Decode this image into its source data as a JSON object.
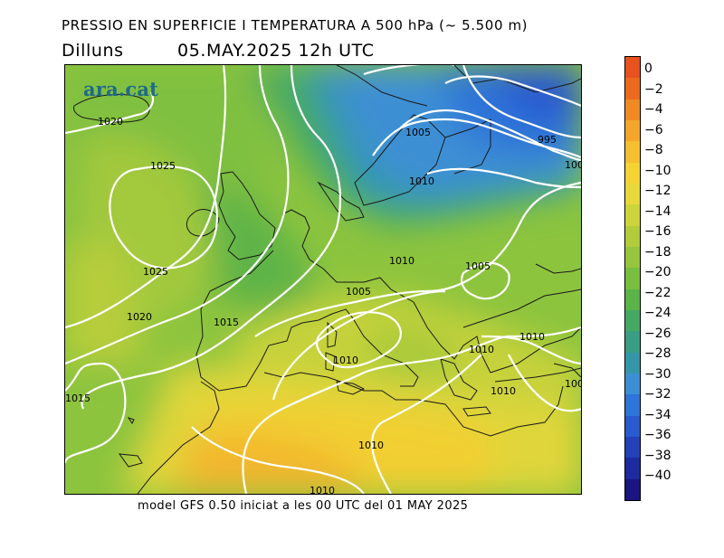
{
  "header": {
    "title": "PRESSIO EN SUPERFICIE I TEMPERATURA A 500 hPa (~ 5.500 m)",
    "day": "Dilluns",
    "datetime": "05.MAY.2025 12h UTC"
  },
  "map": {
    "logo": "ara.cat",
    "isobar_labels": [
      "1020",
      "1025",
      "1025",
      "1020",
      "1015",
      "1015",
      "1005",
      "1010",
      "995",
      "100",
      "1010",
      "1005",
      "1005",
      "1010",
      "1010",
      "1010",
      "1010",
      "100",
      "1010",
      "1010"
    ]
  },
  "colorbar": {
    "labels": [
      "0",
      "−2",
      "−4",
      "−6",
      "−8",
      "−10",
      "−12",
      "−14",
      "−16",
      "−18",
      "−20",
      "−22",
      "−24",
      "−26",
      "−28",
      "−30",
      "−32",
      "−34",
      "−36",
      "−38",
      "−40"
    ],
    "colors": [
      "#e8521f",
      "#ec6a1e",
      "#f08a24",
      "#f3a62a",
      "#f5bf2f",
      "#f4d334",
      "#e6d83a",
      "#cdd43a",
      "#b2cc3a",
      "#95c53c",
      "#78be3f",
      "#5cb348",
      "#45a863",
      "#3a9e84",
      "#3596a8",
      "#3c8fd4",
      "#2f74d8",
      "#2a5ad0",
      "#2341b8",
      "#1d2aa0",
      "#1a1580"
    ]
  },
  "footer": {
    "text": "model GFS 0.50 iniciat a les 00 UTC del 01 MAY 2025"
  }
}
